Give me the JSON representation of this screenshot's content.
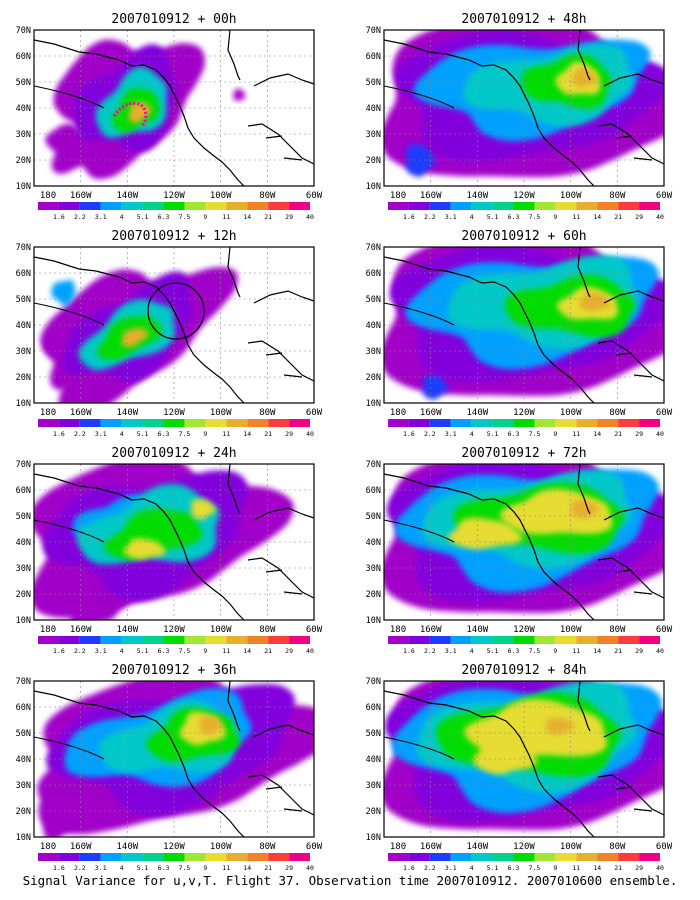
{
  "colorbar": {
    "labels": [
      "1.6",
      "2.2",
      "3.1",
      "4",
      "5.1",
      "6.3",
      "7.5",
      "9",
      "11",
      "14",
      "21",
      "29",
      "40"
    ],
    "colors": [
      "#a000c8",
      "#8200dc",
      "#1e3cff",
      "#00a0ff",
      "#00c8c8",
      "#00d28c",
      "#00dc00",
      "#a0e632",
      "#e6dc32",
      "#e6af2d",
      "#f08228",
      "#fa3c3c",
      "#f00082"
    ]
  },
  "axes": {
    "x_ticks": [
      "180",
      "160W",
      "140W",
      "120W",
      "100W",
      "80W",
      "60W"
    ],
    "y_ticks": [
      "70N",
      "60N",
      "50N",
      "40N",
      "30N",
      "20N",
      "10N"
    ]
  },
  "panels": [
    {
      "title": "2007010912 + 00h",
      "id": "00h"
    },
    {
      "title": "2007010912 + 48h",
      "id": "48h"
    },
    {
      "title": "2007010912 + 12h",
      "id": "12h"
    },
    {
      "title": "2007010912 + 60h",
      "id": "60h"
    },
    {
      "title": "2007010912 + 24h",
      "id": "24h"
    },
    {
      "title": "2007010912 + 72h",
      "id": "72h"
    },
    {
      "title": "2007010912 + 36h",
      "id": "36h"
    },
    {
      "title": "2007010912 + 84h",
      "id": "84h"
    }
  ],
  "footer": "Signal Variance for u,v,T. Flight 37. Observation time 2007010912. 2007010600 ensemble."
}
